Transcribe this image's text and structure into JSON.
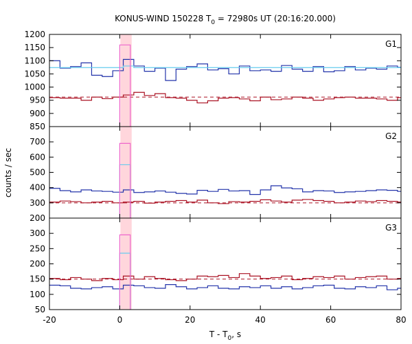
{
  "chart_data": {
    "type": "line",
    "title": "KONUS-WIND 150228 T",
    "title_sub": "0",
    "title_rest": " = 72980s UT (20:16:20.000)",
    "xlabel": "T - T",
    "xlabel_sub": "0",
    "xlabel_rest": ", s",
    "ylabel": "counts / sec",
    "xlim": [
      -20,
      80
    ],
    "x_ticks": [
      -20,
      0,
      20,
      40,
      60,
      80
    ],
    "x_tick_labels": [
      "-20",
      "0",
      "20",
      "40",
      "60",
      "80"
    ],
    "highlight_interval": [
      0,
      3
    ],
    "colors": {
      "dark_blue": "#2233aa",
      "light_blue": "#66ccee",
      "dark_red": "#aa1122",
      "pink": "#ee66cc",
      "highlight": "#ffd6dc"
    },
    "bin_width": 3,
    "panels": [
      {
        "label": "G1",
        "ylim": [
          850,
          1200
        ],
        "y_ticks": [
          850,
          900,
          950,
          1000,
          1050,
          1100,
          1150,
          1200
        ],
        "y_tick_labels": [
          "850",
          "900",
          "950",
          "1000",
          "1050",
          "1100",
          "1150",
          "1200"
        ],
        "series": [
          {
            "color": "dark_blue",
            "x_start": -20,
            "values": [
              1100,
              1072,
              1078,
              1092,
              1045,
              1040,
              1062,
              1105,
              1080,
              1060,
              1072,
              1025,
              1068,
              1078,
              1088,
              1065,
              1070,
              1050,
              1080,
              1062,
              1065,
              1060,
              1082,
              1068,
              1060,
              1078,
              1058,
              1062,
              1078,
              1065,
              1072,
              1068,
              1080,
              1075
            ]
          },
          {
            "color": "light_blue",
            "x_start": -20,
            "values": [
              1074,
              1074,
              1074,
              1074,
              1074,
              1074,
              1074,
              1080,
              1074,
              1074,
              1074,
              1074,
              1074,
              1074,
              1074,
              1074,
              1074,
              1074,
              1074,
              1074,
              1074,
              1074,
              1074,
              1074,
              1074,
              1074,
              1074,
              1074,
              1074,
              1074,
              1074,
              1074,
              1074,
              1074
            ]
          },
          {
            "color": "dark_red",
            "x_start": -20,
            "values": [
              960,
              958,
              958,
              950,
              962,
              956,
              962,
              970,
              980,
              968,
              975,
              960,
              958,
              950,
              940,
              948,
              958,
              960,
              955,
              948,
              962,
              952,
              955,
              962,
              958,
              950,
              955,
              960,
              962,
              958,
              958,
              955,
              950,
              960
            ]
          },
          {
            "color": "pink",
            "x_start": 0,
            "values": [
              1160
            ]
          }
        ],
        "baseline": 962
      },
      {
        "label": "G2",
        "ylim": [
          200,
          800
        ],
        "y_ticks": [
          200,
          300,
          400,
          500,
          600,
          700
        ],
        "y_tick_labels": [
          "200",
          "300",
          "400",
          "500",
          "600",
          "700"
        ],
        "series": [
          {
            "color": "dark_blue",
            "x_start": -20,
            "values": [
              395,
              380,
              372,
              385,
              378,
              375,
              370,
              385,
              368,
              372,
              378,
              370,
              362,
              358,
              382,
              375,
              388,
              378,
              380,
              355,
              385,
              412,
              398,
              392,
              372,
              380,
              378,
              368,
              372,
              375,
              380,
              385,
              382,
              375
            ]
          },
          {
            "color": "light_blue",
            "x_start": 0,
            "values": [
              550
            ]
          },
          {
            "color": "dark_red",
            "x_start": -20,
            "values": [
              305,
              312,
              308,
              300,
              305,
              310,
              300,
              305,
              310,
              298,
              305,
              310,
              315,
              305,
              318,
              300,
              295,
              308,
              305,
              310,
              320,
              312,
              305,
              318,
              322,
              315,
              310,
              300,
              305,
              312,
              308,
              315,
              310,
              305
            ]
          },
          {
            "color": "pink",
            "x_start": 0,
            "values": [
              690
            ]
          }
        ],
        "baseline": 300
      },
      {
        "label": "G3",
        "ylim": [
          50,
          350
        ],
        "y_ticks": [
          50,
          100,
          150,
          200,
          250,
          300
        ],
        "y_tick_labels": [
          "50",
          "100",
          "150",
          "200",
          "250",
          "300"
        ],
        "series": [
          {
            "color": "dark_blue",
            "x_start": -20,
            "values": [
              130,
              128,
              120,
              118,
              122,
              125,
              118,
              130,
              128,
              122,
              120,
              132,
              125,
              118,
              122,
              128,
              120,
              118,
              125,
              122,
              128,
              120,
              125,
              118,
              122,
              128,
              130,
              120,
              118,
              125,
              122,
              128,
              115,
              120
            ]
          },
          {
            "color": "light_blue",
            "x_start": 0,
            "values": [
              235
            ]
          },
          {
            "color": "dark_red",
            "x_start": -20,
            "values": [
              152,
              148,
              155,
              150,
              145,
              152,
              148,
              160,
              150,
              158,
              152,
              148,
              145,
              150,
              160,
              158,
              162,
              155,
              168,
              160,
              152,
              155,
              160,
              148,
              152,
              158,
              155,
              160,
              150,
              155,
              158,
              160,
              150,
              152
            ]
          },
          {
            "color": "pink",
            "x_start": 0,
            "values": [
              295
            ]
          }
        ],
        "baseline": 150
      }
    ]
  }
}
